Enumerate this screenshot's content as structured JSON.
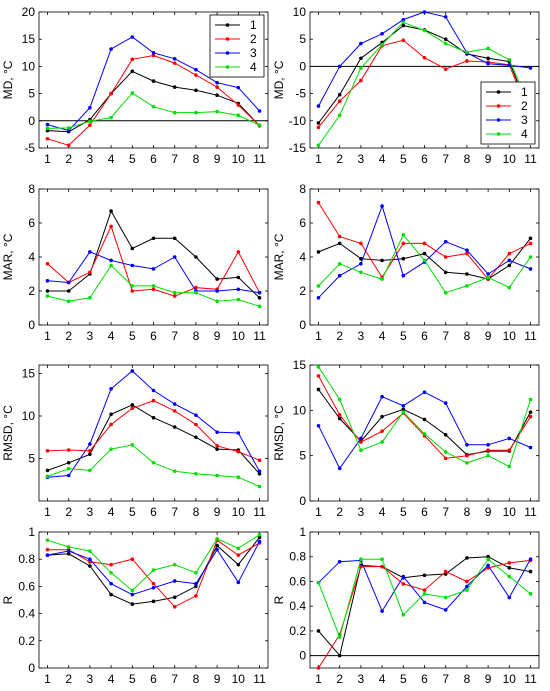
{
  "chart_data": [
    {
      "type": "line",
      "ylabel": "MD, °C",
      "ylim": [
        -5,
        20
      ],
      "yticks": [
        -5,
        0,
        5,
        10,
        15,
        20
      ],
      "zero_line": true,
      "legend": "top-right",
      "x": [
        1,
        2,
        3,
        4,
        5,
        6,
        7,
        8,
        9,
        10,
        11
      ],
      "xticks": [
        1,
        2,
        3,
        4,
        5,
        6,
        7,
        8,
        9,
        10,
        11
      ],
      "series": [
        {
          "name": "1",
          "color": "#000000",
          "values": [
            -1.8,
            -2.0,
            0.2,
            5.0,
            9.1,
            7.3,
            6.2,
            5.6,
            4.7,
            3.2,
            -0.9
          ]
        },
        {
          "name": "2",
          "color": "#ff0000",
          "values": [
            -3.3,
            -4.5,
            -0.8,
            5.0,
            11.3,
            12.0,
            10.6,
            8.4,
            6.2,
            2.9,
            -0.9
          ]
        },
        {
          "name": "3",
          "color": "#0000ff",
          "values": [
            -0.7,
            -1.8,
            2.4,
            13.2,
            15.4,
            12.5,
            11.4,
            9.4,
            7.0,
            6.1,
            1.8
          ]
        },
        {
          "name": "4",
          "color": "#00dd00",
          "values": [
            -1.4,
            -1.3,
            -0.1,
            0.6,
            5.1,
            2.6,
            1.5,
            1.5,
            1.7,
            1.0,
            -0.8
          ]
        }
      ]
    },
    {
      "type": "line",
      "ylabel": "MD, °C",
      "ylim": [
        -15,
        10
      ],
      "yticks": [
        -15,
        -10,
        -5,
        0,
        5,
        10
      ],
      "zero_line": true,
      "legend": "bottom-right",
      "x": [
        1,
        2,
        3,
        4,
        5,
        6,
        7,
        8,
        9,
        10,
        11
      ],
      "xticks": [
        1,
        2,
        3,
        4,
        5,
        6,
        7,
        8,
        9,
        10,
        11
      ],
      "series": [
        {
          "name": "1",
          "color": "#000000",
          "values": [
            -10.4,
            -5.2,
            1.5,
            4.4,
            7.5,
            6.7,
            5.0,
            2.3,
            1.5,
            0.9,
            -8.9
          ]
        },
        {
          "name": "2",
          "color": "#ff0000",
          "values": [
            -11.2,
            -6.4,
            -2.6,
            3.8,
            4.8,
            1.6,
            -0.5,
            1.0,
            0.8,
            0.3,
            -9.5
          ]
        },
        {
          "name": "3",
          "color": "#0000ff",
          "values": [
            -7.3,
            0.0,
            4.2,
            6.0,
            8.6,
            10.0,
            9.1,
            2.5,
            0.5,
            0.2,
            -0.3
          ]
        },
        {
          "name": "4",
          "color": "#00dd00",
          "values": [
            -14.5,
            -9.0,
            -0.3,
            4.0,
            8.1,
            6.6,
            4.2,
            2.6,
            3.3,
            1.2,
            -7.7
          ]
        }
      ]
    },
    {
      "type": "line",
      "ylabel": "MAR, °C",
      "ylim": [
        0,
        8
      ],
      "yticks": [
        0,
        2,
        4,
        6,
        8
      ],
      "zero_line": false,
      "x": [
        1,
        2,
        3,
        4,
        5,
        6,
        7,
        8,
        9,
        10,
        11
      ],
      "xticks": [
        1,
        2,
        3,
        4,
        5,
        6,
        7,
        8,
        9,
        10,
        11
      ],
      "series": [
        {
          "name": "1",
          "color": "#000000",
          "values": [
            2.0,
            2.0,
            3.0,
            6.7,
            4.5,
            5.1,
            5.1,
            4.0,
            2.7,
            2.8,
            1.6
          ]
        },
        {
          "name": "2",
          "color": "#ff0000",
          "values": [
            3.6,
            2.5,
            3.1,
            5.8,
            2.0,
            2.1,
            1.7,
            2.2,
            2.1,
            4.3,
            1.9
          ]
        },
        {
          "name": "3",
          "color": "#0000ff",
          "values": [
            2.6,
            2.5,
            4.3,
            3.8,
            3.5,
            3.3,
            4.0,
            2.0,
            2.0,
            2.1,
            1.9
          ]
        },
        {
          "name": "4",
          "color": "#00dd00",
          "values": [
            1.7,
            1.4,
            1.6,
            3.5,
            2.3,
            2.3,
            1.9,
            1.9,
            1.4,
            1.5,
            1.1
          ]
        }
      ]
    },
    {
      "type": "line",
      "ylabel": "MAR, °C",
      "ylim": [
        0,
        8
      ],
      "yticks": [
        0,
        2,
        4,
        6,
        8
      ],
      "zero_line": false,
      "x": [
        1,
        2,
        3,
        4,
        5,
        6,
        7,
        8,
        9,
        10,
        11
      ],
      "xticks": [
        1,
        2,
        3,
        4,
        5,
        6,
        7,
        8,
        9,
        10,
        11
      ],
      "series": [
        {
          "name": "1",
          "color": "#000000",
          "values": [
            4.3,
            4.8,
            3.9,
            3.8,
            3.9,
            4.2,
            3.1,
            3.0,
            2.7,
            3.5,
            5.1
          ]
        },
        {
          "name": "2",
          "color": "#ff0000",
          "values": [
            7.2,
            5.2,
            4.8,
            2.8,
            4.8,
            4.8,
            4.0,
            4.2,
            2.7,
            4.2,
            4.8
          ]
        },
        {
          "name": "3",
          "color": "#0000ff",
          "values": [
            1.6,
            2.9,
            3.6,
            7.0,
            2.9,
            3.7,
            4.9,
            4.4,
            3.0,
            3.8,
            3.3
          ]
        },
        {
          "name": "4",
          "color": "#00dd00",
          "values": [
            2.3,
            3.6,
            3.1,
            2.7,
            5.3,
            3.8,
            1.9,
            2.3,
            2.8,
            2.2,
            4.0
          ]
        }
      ]
    },
    {
      "type": "line",
      "ylabel": "RMSD, °C",
      "ylim": [
        0,
        16
      ],
      "yticks": [
        5,
        10,
        15
      ],
      "zero_line": false,
      "x": [
        1,
        2,
        3,
        4,
        5,
        6,
        7,
        8,
        9,
        10,
        11
      ],
      "xticks": [
        1,
        2,
        3,
        4,
        5,
        6,
        7,
        8,
        9,
        10,
        11
      ],
      "series": [
        {
          "name": "1",
          "color": "#000000",
          "values": [
            3.6,
            4.5,
            5.5,
            10.2,
            11.3,
            9.8,
            8.7,
            7.5,
            6.1,
            6.0,
            3.2
          ]
        },
        {
          "name": "2",
          "color": "#ff0000",
          "values": [
            5.9,
            6.0,
            5.9,
            9.0,
            10.9,
            11.8,
            10.6,
            9.0,
            6.5,
            5.8,
            4.8
          ]
        },
        {
          "name": "3",
          "color": "#0000ff",
          "values": [
            2.8,
            3.0,
            6.7,
            13.2,
            15.3,
            13.0,
            11.4,
            10.1,
            8.1,
            8.0,
            3.5
          ]
        },
        {
          "name": "4",
          "color": "#00dd00",
          "values": [
            2.9,
            3.8,
            3.6,
            6.1,
            6.6,
            4.5,
            3.5,
            3.2,
            3.0,
            2.8,
            1.7
          ]
        }
      ]
    },
    {
      "type": "line",
      "ylabel": "RMSD, °C",
      "ylim": [
        0,
        15
      ],
      "yticks": [
        0,
        5,
        10,
        15
      ],
      "zero_line": false,
      "x": [
        1,
        2,
        3,
        4,
        5,
        6,
        7,
        8,
        9,
        10,
        11
      ],
      "xticks": [
        1,
        2,
        3,
        4,
        5,
        6,
        7,
        8,
        9,
        10,
        11
      ],
      "series": [
        {
          "name": "1",
          "color": "#000000",
          "values": [
            12.3,
            9.1,
            6.6,
            9.3,
            10.1,
            9.0,
            7.3,
            5.1,
            5.5,
            5.5,
            9.8
          ]
        },
        {
          "name": "2",
          "color": "#ff0000",
          "values": [
            13.8,
            9.5,
            6.5,
            7.7,
            9.7,
            7.2,
            4.7,
            5.0,
            5.6,
            5.6,
            9.3
          ]
        },
        {
          "name": "3",
          "color": "#0000ff",
          "values": [
            8.3,
            3.6,
            6.9,
            11.5,
            10.5,
            12.0,
            10.8,
            6.2,
            6.2,
            6.9,
            5.9
          ]
        },
        {
          "name": "4",
          "color": "#00dd00",
          "values": [
            14.8,
            11.2,
            5.6,
            6.5,
            9.8,
            7.4,
            5.4,
            4.2,
            5.0,
            3.8,
            11.2
          ]
        }
      ]
    },
    {
      "type": "line",
      "ylabel": "R",
      "ylim": [
        0,
        1
      ],
      "yticks": [
        0,
        0.2,
        0.4,
        0.6,
        0.8,
        1
      ],
      "zero_line": false,
      "x": [
        1,
        2,
        3,
        4,
        5,
        6,
        7,
        8,
        9,
        10,
        11
      ],
      "xticks": [
        1,
        2,
        3,
        4,
        5,
        6,
        7,
        8,
        9,
        10,
        11
      ],
      "series": [
        {
          "name": "1",
          "color": "#000000",
          "values": [
            0.83,
            0.84,
            0.75,
            0.54,
            0.47,
            0.49,
            0.52,
            0.6,
            0.9,
            0.76,
            0.96
          ]
        },
        {
          "name": "2",
          "color": "#ff0000",
          "values": [
            0.87,
            0.87,
            0.78,
            0.76,
            0.8,
            0.62,
            0.45,
            0.53,
            0.94,
            0.83,
            0.92
          ]
        },
        {
          "name": "3",
          "color": "#0000ff",
          "values": [
            0.83,
            0.86,
            0.8,
            0.62,
            0.54,
            0.59,
            0.64,
            0.62,
            0.87,
            0.63,
            0.93
          ]
        },
        {
          "name": "4",
          "color": "#00dd00",
          "values": [
            0.94,
            0.89,
            0.86,
            0.7,
            0.57,
            0.72,
            0.76,
            0.7,
            0.95,
            0.88,
            0.98
          ]
        }
      ]
    },
    {
      "type": "line",
      "ylabel": "R",
      "ylim": [
        -0.1,
        1
      ],
      "yticks": [
        0,
        0.2,
        0.4,
        0.6,
        0.8,
        1
      ],
      "zero_line": true,
      "x": [
        1,
        2,
        3,
        4,
        5,
        6,
        7,
        8,
        9,
        10,
        11
      ],
      "xticks": [
        1,
        2,
        3,
        4,
        5,
        6,
        7,
        8,
        9,
        10,
        11
      ],
      "series": [
        {
          "name": "1",
          "color": "#000000",
          "values": [
            0.2,
            0.0,
            0.73,
            0.72,
            0.63,
            0.65,
            0.66,
            0.79,
            0.8,
            0.71,
            0.68
          ]
        },
        {
          "name": "2",
          "color": "#ff0000",
          "values": [
            -0.1,
            0.17,
            0.72,
            0.72,
            0.58,
            0.53,
            0.68,
            0.6,
            0.71,
            0.75,
            0.77
          ]
        },
        {
          "name": "3",
          "color": "#0000ff",
          "values": [
            0.59,
            0.76,
            0.77,
            0.36,
            0.64,
            0.43,
            0.37,
            0.56,
            0.73,
            0.47,
            0.78
          ]
        },
        {
          "name": "4",
          "color": "#00dd00",
          "values": [
            0.59,
            0.15,
            0.78,
            0.78,
            0.33,
            0.5,
            0.47,
            0.53,
            0.78,
            0.64,
            0.5
          ]
        }
      ]
    }
  ]
}
